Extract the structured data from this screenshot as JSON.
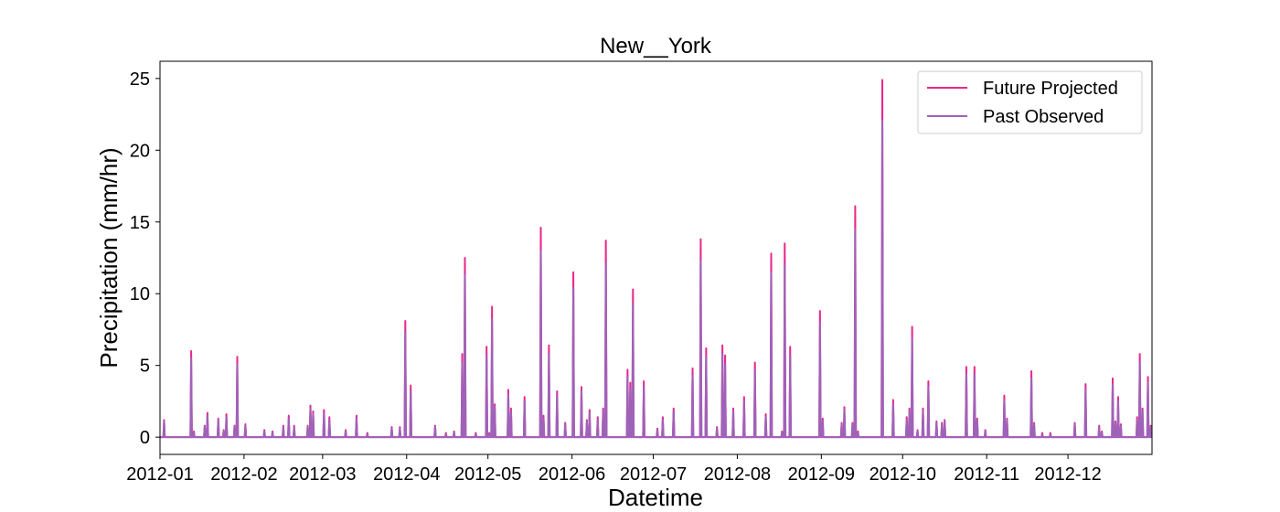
{
  "chart_data": {
    "type": "line",
    "title": "New__York",
    "xlabel": "Datetime",
    "ylabel": "Precipitation (mm/hr)",
    "x_range": [
      "2012-01-01",
      "2012-12-31"
    ],
    "ylim": [
      -1.2,
      26.2
    ],
    "x_ticks": [
      "2012-01",
      "2012-02",
      "2012-03",
      "2012-04",
      "2012-05",
      "2012-06",
      "2012-07",
      "2012-08",
      "2012-09",
      "2012-10",
      "2012-11",
      "2012-12"
    ],
    "y_ticks": [
      0,
      5,
      10,
      15,
      20,
      25
    ],
    "grid": false,
    "legend_position": "top-right",
    "series": [
      {
        "name": "Future Projected",
        "color": "#e7298a",
        "points": [
          [
            "2012-01-02",
            1.2
          ],
          [
            "2012-01-12",
            3.3
          ],
          [
            "2012-01-12",
            6.0
          ],
          [
            "2012-01-13",
            0.4
          ],
          [
            "2012-01-17",
            0.8
          ],
          [
            "2012-01-18",
            1.7
          ],
          [
            "2012-01-22",
            1.3
          ],
          [
            "2012-01-24",
            0.5
          ],
          [
            "2012-01-25",
            1.6
          ],
          [
            "2012-01-28",
            0.8
          ],
          [
            "2012-01-29",
            5.6
          ],
          [
            "2012-02-01",
            0.9
          ],
          [
            "2012-02-08",
            0.5
          ],
          [
            "2012-02-11",
            0.4
          ],
          [
            "2012-02-15",
            0.8
          ],
          [
            "2012-02-17",
            1.5
          ],
          [
            "2012-02-19",
            0.8
          ],
          [
            "2012-02-24",
            0.8
          ],
          [
            "2012-02-25",
            2.2
          ],
          [
            "2012-02-26",
            1.8
          ],
          [
            "2012-03-01",
            1.9
          ],
          [
            "2012-03-03",
            1.4
          ],
          [
            "2012-03-09",
            0.5
          ],
          [
            "2012-03-13",
            1.5
          ],
          [
            "2012-03-17",
            0.3
          ],
          [
            "2012-03-26",
            0.7
          ],
          [
            "2012-03-29",
            0.7
          ],
          [
            "2012-03-31",
            8.1
          ],
          [
            "2012-04-02",
            3.6
          ],
          [
            "2012-04-11",
            0.8
          ],
          [
            "2012-04-15",
            0.3
          ],
          [
            "2012-04-18",
            0.4
          ],
          [
            "2012-04-21",
            5.8
          ],
          [
            "2012-04-22",
            12.5
          ],
          [
            "2012-04-26",
            0.3
          ],
          [
            "2012-04-30",
            6.3
          ],
          [
            "2012-05-01",
            0.3
          ],
          [
            "2012-05-02",
            9.1
          ],
          [
            "2012-05-03",
            2.3
          ],
          [
            "2012-05-08",
            3.3
          ],
          [
            "2012-05-09",
            2.0
          ],
          [
            "2012-05-14",
            2.8
          ],
          [
            "2012-05-20",
            14.6
          ],
          [
            "2012-05-21",
            1.5
          ],
          [
            "2012-05-23",
            6.4
          ],
          [
            "2012-05-26",
            3.2
          ],
          [
            "2012-05-29",
            1.0
          ],
          [
            "2012-06-01",
            11.5
          ],
          [
            "2012-06-04",
            3.5
          ],
          [
            "2012-06-06",
            1.2
          ],
          [
            "2012-06-07",
            1.9
          ],
          [
            "2012-06-10",
            1.4
          ],
          [
            "2012-06-12",
            2.0
          ],
          [
            "2012-06-13",
            13.7
          ],
          [
            "2012-06-21",
            4.7
          ],
          [
            "2012-06-22",
            3.8
          ],
          [
            "2012-06-23",
            10.3
          ],
          [
            "2012-06-27",
            3.9
          ],
          [
            "2012-07-02",
            0.6
          ],
          [
            "2012-07-04",
            1.4
          ],
          [
            "2012-07-08",
            2.0
          ],
          [
            "2012-07-15",
            4.8
          ],
          [
            "2012-07-18",
            13.8
          ],
          [
            "2012-07-20",
            6.2
          ],
          [
            "2012-07-24",
            0.7
          ],
          [
            "2012-07-26",
            6.4
          ],
          [
            "2012-07-27",
            5.7
          ],
          [
            "2012-07-30",
            2.0
          ],
          [
            "2012-08-03",
            2.8
          ],
          [
            "2012-08-07",
            5.2
          ],
          [
            "2012-08-11",
            1.6
          ],
          [
            "2012-08-13",
            12.8
          ],
          [
            "2012-08-17",
            0.4
          ],
          [
            "2012-08-18",
            13.5
          ],
          [
            "2012-08-20",
            6.3
          ],
          [
            "2012-08-31",
            8.8
          ],
          [
            "2012-09-01",
            1.3
          ],
          [
            "2012-09-08",
            1.0
          ],
          [
            "2012-09-09",
            2.1
          ],
          [
            "2012-09-12",
            1.0
          ],
          [
            "2012-09-13",
            16.1
          ],
          [
            "2012-09-14",
            0.4
          ],
          [
            "2012-09-23",
            24.9
          ],
          [
            "2012-09-23",
            2.0
          ],
          [
            "2012-09-27",
            2.6
          ],
          [
            "2012-10-02",
            1.4
          ],
          [
            "2012-10-03",
            2.0
          ],
          [
            "2012-10-04",
            7.7
          ],
          [
            "2012-10-06",
            0.5
          ],
          [
            "2012-10-08",
            2.0
          ],
          [
            "2012-10-10",
            3.9
          ],
          [
            "2012-10-13",
            1.1
          ],
          [
            "2012-10-15",
            1.0
          ],
          [
            "2012-10-16",
            1.2
          ],
          [
            "2012-10-24",
            4.9
          ],
          [
            "2012-10-27",
            4.9
          ],
          [
            "2012-10-28",
            1.3
          ],
          [
            "2012-10-31",
            0.5
          ],
          [
            "2012-11-07",
            2.9
          ],
          [
            "2012-11-08",
            1.3
          ],
          [
            "2012-11-17",
            4.6
          ],
          [
            "2012-11-18",
            1.0
          ],
          [
            "2012-11-21",
            0.3
          ],
          [
            "2012-11-24",
            0.3
          ],
          [
            "2012-12-03",
            1.0
          ],
          [
            "2012-12-07",
            3.7
          ],
          [
            "2012-12-12",
            0.8
          ],
          [
            "2012-12-13",
            0.4
          ],
          [
            "2012-12-17",
            4.1
          ],
          [
            "2012-12-18",
            1.1
          ],
          [
            "2012-12-19",
            2.8
          ],
          [
            "2012-12-20",
            0.9
          ],
          [
            "2012-12-26",
            1.4
          ],
          [
            "2012-12-27",
            5.8
          ],
          [
            "2012-12-28",
            2.0
          ],
          [
            "2012-12-30",
            4.2
          ],
          [
            "2012-12-31",
            0.8
          ]
        ]
      },
      {
        "name": "Past Observed",
        "color": "#9f62b9",
        "points": [
          [
            "2012-01-02",
            1.1
          ],
          [
            "2012-01-12",
            3.0
          ],
          [
            "2012-01-12",
            5.5
          ],
          [
            "2012-01-13",
            0.3
          ],
          [
            "2012-01-17",
            0.7
          ],
          [
            "2012-01-18",
            1.5
          ],
          [
            "2012-01-22",
            1.2
          ],
          [
            "2012-01-24",
            0.4
          ],
          [
            "2012-01-25",
            1.4
          ],
          [
            "2012-01-28",
            0.7
          ],
          [
            "2012-01-29",
            5.1
          ],
          [
            "2012-02-01",
            0.8
          ],
          [
            "2012-02-08",
            0.4
          ],
          [
            "2012-02-11",
            0.3
          ],
          [
            "2012-02-15",
            0.7
          ],
          [
            "2012-02-17",
            1.3
          ],
          [
            "2012-02-19",
            0.7
          ],
          [
            "2012-02-24",
            0.7
          ],
          [
            "2012-02-25",
            2.0
          ],
          [
            "2012-02-26",
            1.6
          ],
          [
            "2012-03-01",
            1.7
          ],
          [
            "2012-03-03",
            1.2
          ],
          [
            "2012-03-09",
            0.4
          ],
          [
            "2012-03-13",
            1.3
          ],
          [
            "2012-03-17",
            0.2
          ],
          [
            "2012-03-26",
            0.6
          ],
          [
            "2012-03-29",
            0.6
          ],
          [
            "2012-03-31",
            7.3
          ],
          [
            "2012-04-02",
            3.2
          ],
          [
            "2012-04-11",
            0.7
          ],
          [
            "2012-04-15",
            0.2
          ],
          [
            "2012-04-18",
            0.3
          ],
          [
            "2012-04-21",
            5.2
          ],
          [
            "2012-04-22",
            11.3
          ],
          [
            "2012-04-26",
            0.2
          ],
          [
            "2012-04-30",
            5.7
          ],
          [
            "2012-05-01",
            0.2
          ],
          [
            "2012-05-02",
            8.2
          ],
          [
            "2012-05-03",
            2.1
          ],
          [
            "2012-05-08",
            3.0
          ],
          [
            "2012-05-09",
            1.8
          ],
          [
            "2012-05-14",
            2.5
          ],
          [
            "2012-05-20",
            13.0
          ],
          [
            "2012-05-21",
            1.3
          ],
          [
            "2012-05-23",
            5.8
          ],
          [
            "2012-05-26",
            2.9
          ],
          [
            "2012-05-29",
            0.9
          ],
          [
            "2012-06-01",
            10.4
          ],
          [
            "2012-06-04",
            3.2
          ],
          [
            "2012-06-06",
            1.1
          ],
          [
            "2012-06-07",
            1.7
          ],
          [
            "2012-06-10",
            1.2
          ],
          [
            "2012-06-12",
            1.8
          ],
          [
            "2012-06-13",
            12.1
          ],
          [
            "2012-06-21",
            4.2
          ],
          [
            "2012-06-22",
            3.4
          ],
          [
            "2012-06-23",
            9.3
          ],
          [
            "2012-06-27",
            3.5
          ],
          [
            "2012-07-02",
            0.5
          ],
          [
            "2012-07-04",
            1.2
          ],
          [
            "2012-07-08",
            1.8
          ],
          [
            "2012-07-15",
            4.3
          ],
          [
            "2012-07-18",
            12.3
          ],
          [
            "2012-07-20",
            5.6
          ],
          [
            "2012-07-24",
            0.6
          ],
          [
            "2012-07-26",
            5.8
          ],
          [
            "2012-07-27",
            5.1
          ],
          [
            "2012-07-30",
            1.8
          ],
          [
            "2012-08-03",
            2.5
          ],
          [
            "2012-08-07",
            4.7
          ],
          [
            "2012-08-11",
            1.4
          ],
          [
            "2012-08-13",
            11.5
          ],
          [
            "2012-08-17",
            0.3
          ],
          [
            "2012-08-18",
            12.0
          ],
          [
            "2012-08-20",
            5.7
          ],
          [
            "2012-08-31",
            8.0
          ],
          [
            "2012-09-01",
            1.1
          ],
          [
            "2012-09-08",
            0.9
          ],
          [
            "2012-09-09",
            1.9
          ],
          [
            "2012-09-12",
            0.9
          ],
          [
            "2012-09-13",
            14.5
          ],
          [
            "2012-09-14",
            0.3
          ],
          [
            "2012-09-23",
            22.1
          ],
          [
            "2012-09-23",
            1.8
          ],
          [
            "2012-09-27",
            2.3
          ],
          [
            "2012-10-02",
            1.2
          ],
          [
            "2012-10-03",
            1.8
          ],
          [
            "2012-10-04",
            6.9
          ],
          [
            "2012-10-06",
            0.4
          ],
          [
            "2012-10-08",
            1.8
          ],
          [
            "2012-10-10",
            3.5
          ],
          [
            "2012-10-13",
            1.0
          ],
          [
            "2012-10-15",
            0.9
          ],
          [
            "2012-10-16",
            1.1
          ],
          [
            "2012-10-24",
            4.4
          ],
          [
            "2012-10-27",
            4.4
          ],
          [
            "2012-10-28",
            1.2
          ],
          [
            "2012-10-31",
            0.4
          ],
          [
            "2012-11-07",
            2.6
          ],
          [
            "2012-11-08",
            1.2
          ],
          [
            "2012-11-17",
            4.1
          ],
          [
            "2012-11-18",
            0.9
          ],
          [
            "2012-11-21",
            0.2
          ],
          [
            "2012-11-24",
            0.2
          ],
          [
            "2012-12-03",
            0.9
          ],
          [
            "2012-12-07",
            3.3
          ],
          [
            "2012-12-12",
            0.7
          ],
          [
            "2012-12-13",
            0.3
          ],
          [
            "2012-12-17",
            3.7
          ],
          [
            "2012-12-18",
            1.0
          ],
          [
            "2012-12-19",
            2.5
          ],
          [
            "2012-12-20",
            0.8
          ],
          [
            "2012-12-26",
            1.2
          ],
          [
            "2012-12-27",
            5.2
          ],
          [
            "2012-12-28",
            1.8
          ],
          [
            "2012-12-30",
            3.8
          ],
          [
            "2012-12-31",
            0.7
          ]
        ]
      }
    ]
  }
}
